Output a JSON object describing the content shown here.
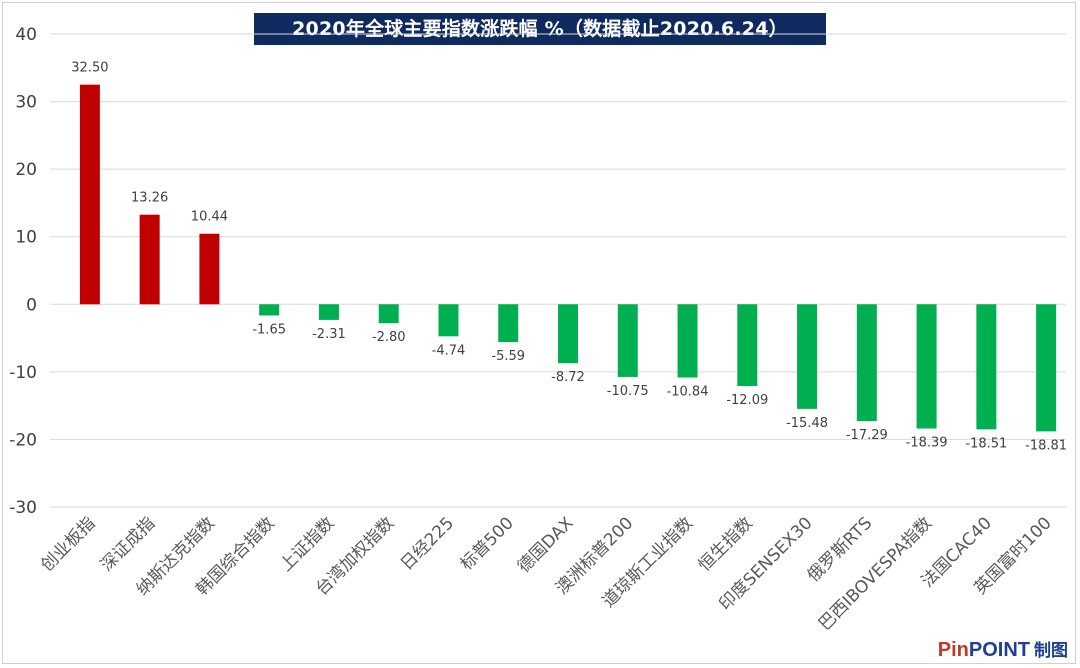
{
  "chart_data": {
    "type": "bar",
    "title": "2020年全球主要指数涨跌幅 %（数据截止2020.6.24）",
    "categories": [
      "创业板指",
      "深证成指",
      "纳斯达克指数",
      "韩国综合指数",
      "上证指数",
      "台湾加权指数",
      "日经225",
      "标普500",
      "德国DAX",
      "澳洲标普200",
      "道琼斯工业指数",
      "恒生指数",
      "印度SENSEX30",
      "俄罗斯RTS",
      "巴西IBOVESPA指数",
      "法国CAC40",
      "英国富时100"
    ],
    "values": [
      32.5,
      13.26,
      10.44,
      -1.65,
      -2.31,
      -2.8,
      -4.74,
      -5.59,
      -8.72,
      -10.75,
      -10.84,
      -12.09,
      -15.48,
      -17.29,
      -18.39,
      -18.51,
      -18.81
    ],
    "value_labels": [
      "32.50",
      "13.26",
      "10.44",
      "-1.65",
      "-2.31",
      "-2.80",
      "-4.74",
      "-5.59",
      "-8.72",
      "-10.75",
      "-10.84",
      "-12.09",
      "-15.48",
      "-17.29",
      "-18.39",
      "-18.51",
      "-18.81"
    ],
    "yticks": [
      "40",
      "30",
      "20",
      "10",
      "0",
      "-10",
      "-20",
      "-30"
    ],
    "ylim": [
      -30,
      40
    ],
    "grid": true,
    "colors": {
      "positive": "#c00000",
      "negative": "#00b050"
    }
  },
  "watermark": {
    "pin": "Pin",
    "point": "POINT",
    "suffix": "制图"
  }
}
